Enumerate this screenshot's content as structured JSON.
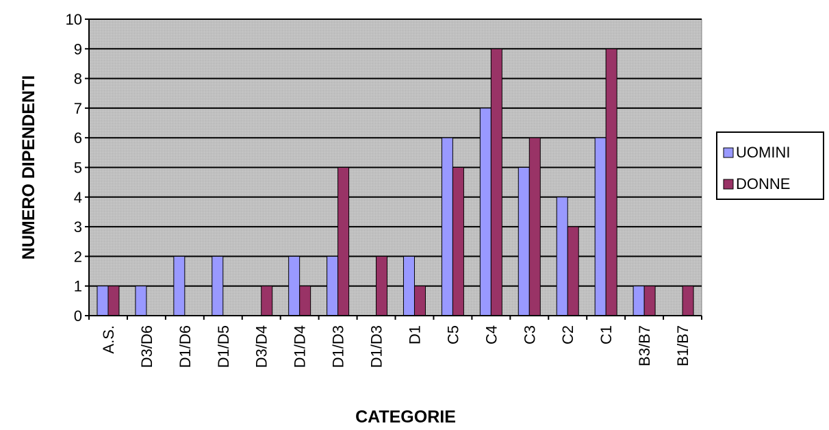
{
  "chart_data": {
    "type": "bar",
    "xlabel": "CATEGORIE",
    "ylabel": "NUMERO DIPENDENTI",
    "ylim": [
      0,
      10
    ],
    "yticks": [
      0,
      1,
      2,
      3,
      4,
      5,
      6,
      7,
      8,
      9,
      10
    ],
    "grid": true,
    "legend": "right",
    "categories": [
      "A.S.",
      "D3/D6",
      "D1/D6",
      "D1/D5",
      "D3/D4",
      "D1/D4",
      "D1/D3",
      "D1/D3",
      "D1",
      "C5",
      "C4",
      "C3",
      "C2",
      "C1",
      "B3/B7",
      "B1/B7"
    ],
    "series": [
      {
        "name": "UOMINI",
        "color": "#9999ff",
        "values": [
          1,
          1,
          2,
          2,
          0,
          2,
          2,
          0,
          2,
          6,
          7,
          5,
          4,
          6,
          1,
          0
        ]
      },
      {
        "name": "DONNE",
        "color": "#993366",
        "values": [
          1,
          0,
          0,
          0,
          1,
          1,
          5,
          2,
          1,
          5,
          9,
          6,
          3,
          9,
          1,
          1
        ]
      }
    ],
    "plot_background": "#c0c0c0"
  }
}
